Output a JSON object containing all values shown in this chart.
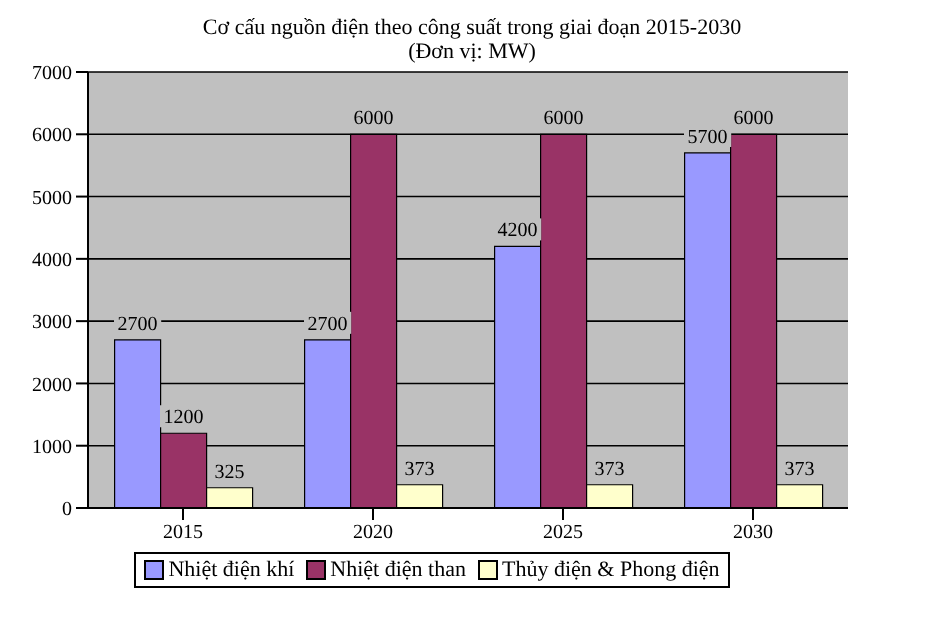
{
  "chart_data": {
    "type": "bar",
    "title": "Cơ cấu nguồn điện theo công suất trong giai đoạn 2015-2030",
    "subtitle": "(Đơn vị: MW)",
    "categories": [
      "2015",
      "2020",
      "2025",
      "2030"
    ],
    "series": [
      {
        "name": "Nhiệt điện khí",
        "color": "#9999ff",
        "values": [
          2700,
          2700,
          4200,
          5700
        ]
      },
      {
        "name": "Nhiệt điện than",
        "color": "#993366",
        "values": [
          1200,
          6000,
          6000,
          6000
        ]
      },
      {
        "name": "Thủy điện & Phong điện",
        "color": "#ffffcc",
        "values": [
          325,
          373,
          373,
          373
        ]
      }
    ],
    "ylim": [
      0,
      7000
    ],
    "yticks": [
      0,
      1000,
      2000,
      3000,
      4000,
      5000,
      6000,
      7000
    ],
    "grid": "y",
    "legend": "bottom",
    "data_labels": true
  }
}
